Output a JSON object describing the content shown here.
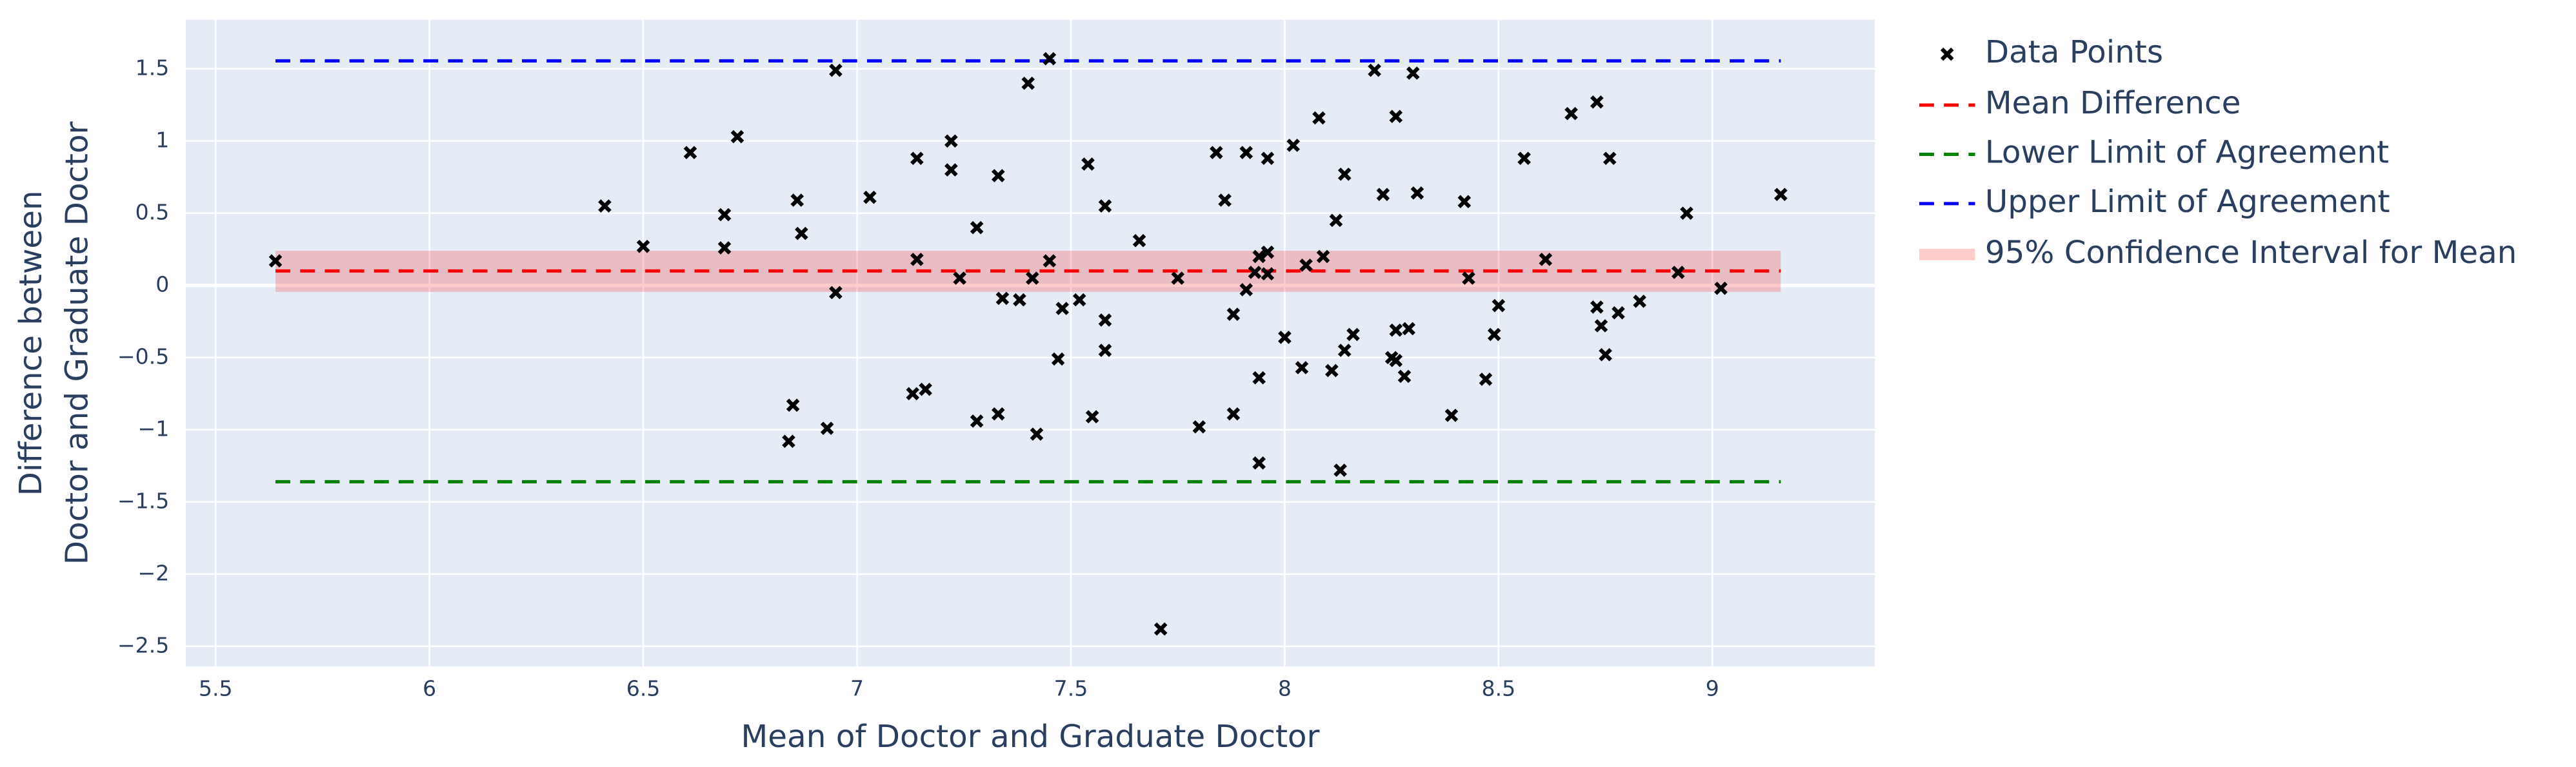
{
  "chart_data": {
    "type": "scatter",
    "x_label": "Mean of Doctor and Graduate Doctor",
    "y_label": [
      "Difference between",
      "Doctor and Graduate Doctor"
    ],
    "xlim": [
      5.43,
      9.38
    ],
    "ylim": [
      -2.64,
      1.84
    ],
    "xticks": [
      5.5,
      6,
      6.5,
      7,
      7.5,
      8,
      8.5,
      9
    ],
    "yticks": [
      {
        "value": -2.5,
        "label": "−2.5"
      },
      {
        "value": -2,
        "label": "−2"
      },
      {
        "value": -1.5,
        "label": "−1.5"
      },
      {
        "value": -1,
        "label": "−1"
      },
      {
        "value": -0.5,
        "label": "−0.5"
      },
      0,
      0.5,
      1,
      1.5
    ],
    "grid": true,
    "legend": "right",
    "points": {
      "name": "Data Points",
      "color": "#000000",
      "marker": "x",
      "x": [
        5.64,
        6.41,
        6.5,
        6.61,
        6.69,
        6.69,
        6.72,
        6.84,
        6.85,
        6.86,
        6.87,
        6.93,
        6.95,
        6.95,
        7.03,
        7.13,
        7.14,
        7.14,
        7.16,
        7.22,
        7.22,
        7.24,
        7.28,
        7.28,
        7.33,
        7.33,
        7.34,
        7.38,
        7.4,
        7.41,
        7.42,
        7.45,
        7.45,
        7.47,
        7.48,
        7.52,
        7.54,
        7.55,
        7.58,
        7.58,
        7.58,
        7.66,
        7.71,
        7.75,
        7.8,
        7.84,
        7.86,
        7.88,
        7.88,
        7.91,
        7.91,
        7.93,
        7.94,
        7.94,
        7.94,
        7.96,
        7.96,
        7.96,
        8.0,
        8.02,
        8.04,
        8.05,
        8.08,
        8.09,
        8.11,
        8.12,
        8.13,
        8.14,
        8.14,
        8.16,
        8.21,
        8.23,
        8.25,
        8.26,
        8.26,
        8.26,
        8.28,
        8.29,
        8.3,
        8.31,
        8.39,
        8.42,
        8.43,
        8.47,
        8.49,
        8.5,
        8.56,
        8.61,
        8.67,
        8.73,
        8.73,
        8.74,
        8.75,
        8.76,
        8.78,
        8.83,
        8.92,
        8.94,
        9.02,
        9.16
      ],
      "values": [
        0.17,
        0.55,
        0.27,
        0.92,
        0.49,
        0.26,
        1.03,
        -1.08,
        -0.83,
        0.59,
        0.36,
        -0.99,
        1.49,
        -0.05,
        0.61,
        -0.75,
        0.88,
        0.18,
        -0.72,
        1.0,
        0.8,
        0.05,
        -0.94,
        0.4,
        0.76,
        -0.89,
        -0.09,
        -0.1,
        1.4,
        0.05,
        -1.03,
        0.17,
        1.57,
        -0.51,
        -0.16,
        -0.1,
        0.84,
        -0.91,
        0.55,
        -0.24,
        -0.45,
        0.31,
        -2.38,
        0.05,
        -0.98,
        0.92,
        0.59,
        -0.2,
        -0.89,
        0.92,
        -0.03,
        0.09,
        0.2,
        -1.23,
        -0.64,
        0.88,
        0.23,
        0.08,
        -0.36,
        0.97,
        -0.57,
        0.14,
        1.16,
        0.2,
        -0.59,
        0.45,
        -1.28,
        0.77,
        -0.45,
        -0.34,
        1.49,
        0.63,
        -0.5,
        -0.52,
        1.17,
        -0.31,
        -0.63,
        -0.3,
        1.47,
        0.64,
        -0.9,
        0.58,
        0.05,
        -0.65,
        -0.34,
        -0.14,
        0.88,
        0.18,
        1.19,
        1.27,
        -0.15,
        -0.28,
        -0.48,
        0.88,
        -0.19,
        -0.11,
        0.09,
        0.5,
        -0.02,
        0.63
      ]
    },
    "lines": [
      {
        "name": "Mean Difference",
        "color": "#ff0000",
        "value": 0.1
      },
      {
        "name": "Lower Limit of Agreement",
        "color": "#008000",
        "value": -1.36
      },
      {
        "name": "Upper Limit of Agreement",
        "color": "#0000ff",
        "value": 1.555
      }
    ],
    "band": {
      "name": "95% Confidence Interval for Mean",
      "color": "rgba(255,0,0,0.2)",
      "lower": -0.045,
      "upper": 0.24
    }
  }
}
